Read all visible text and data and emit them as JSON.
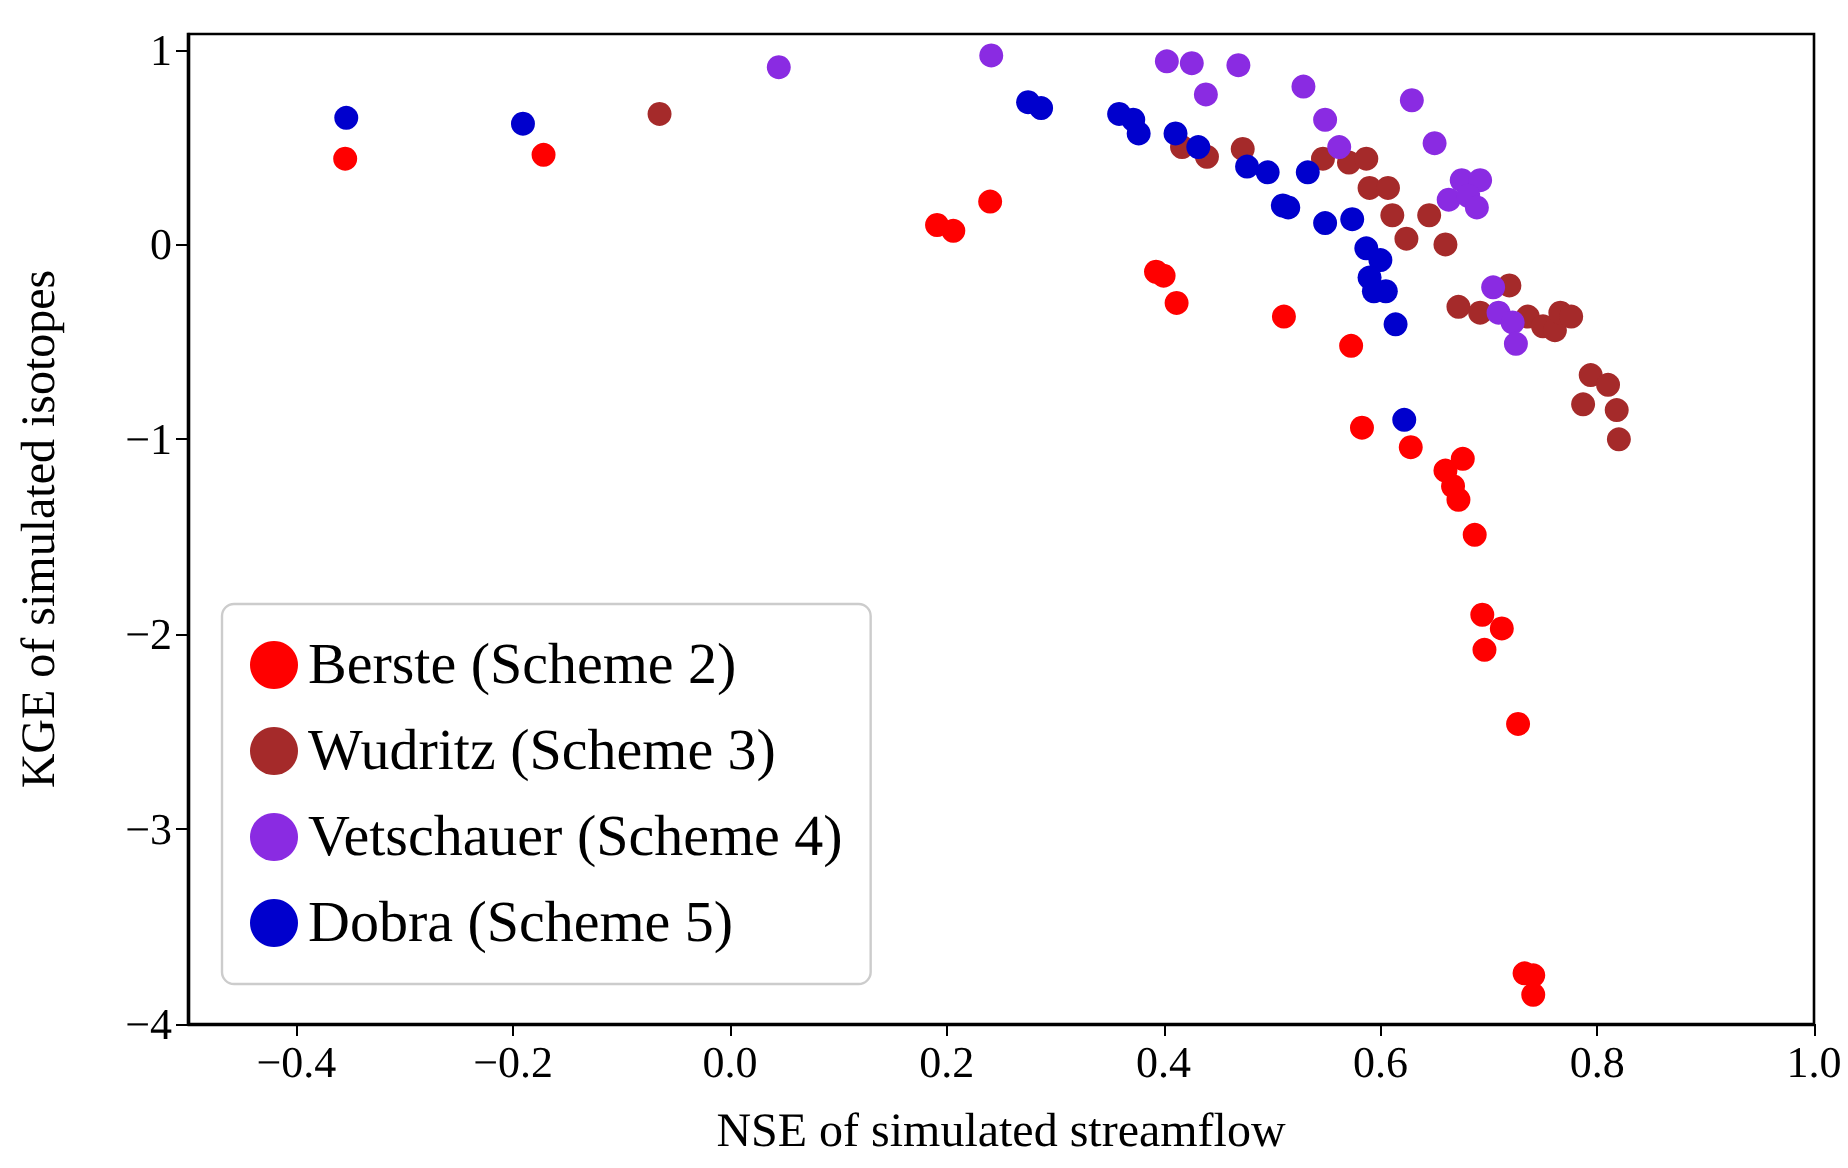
{
  "chart_data": {
    "type": "scatter",
    "xlabel": "NSE of simulated streamflow",
    "ylabel": "KGE of simulated isotopes",
    "xlim": [
      -0.5,
      1.0
    ],
    "ylim": [
      -4.0,
      1.08
    ],
    "xticks": [
      {
        "value": -0.4,
        "label": "−0.4"
      },
      {
        "value": -0.2,
        "label": "−0.2"
      },
      {
        "value": 0,
        "label": "0.0"
      },
      {
        "value": 0.2,
        "label": "0.2"
      },
      {
        "value": 0.4,
        "label": "0.4"
      },
      {
        "value": 0.6,
        "label": "0.6"
      },
      {
        "value": 0.8,
        "label": "0.8"
      },
      {
        "value": 1.0,
        "label": "1.0"
      }
    ],
    "yticks": [
      {
        "value": -4,
        "label": "−4"
      },
      {
        "value": -3,
        "label": "−3"
      },
      {
        "value": -2,
        "label": "−2"
      },
      {
        "value": -1,
        "label": "−1"
      },
      0,
      1
    ],
    "legend": "bottom left",
    "marker": "circle",
    "series": [
      {
        "name": "Berste (Scheme 2)",
        "color": "#ff0000",
        "x": [
          -0.355,
          -0.172,
          0.191,
          0.206,
          0.24,
          0.393,
          0.4,
          0.412,
          0.511,
          0.573,
          0.583,
          0.628,
          0.676,
          0.66,
          0.667,
          0.672,
          0.687,
          0.694,
          0.712,
          0.696,
          0.727,
          0.733,
          0.741,
          0.741
        ],
        "values": [
          0.44,
          0.46,
          0.1,
          0.07,
          0.22,
          -0.14,
          -0.16,
          -0.3,
          -0.37,
          -0.52,
          -0.94,
          -1.04,
          -1.1,
          -1.16,
          -1.24,
          -1.31,
          -1.49,
          -1.9,
          -1.97,
          -2.08,
          -2.46,
          -3.74,
          -3.75,
          -3.85
        ]
      },
      {
        "name": "Wudritz (Scheme 3)",
        "color": "#a52a2a",
        "x": [
          -0.065,
          0.417,
          0.44,
          0.473,
          0.547,
          0.571,
          0.587,
          0.59,
          0.607,
          0.611,
          0.645,
          0.624,
          0.66,
          0.719,
          0.672,
          0.692,
          0.736,
          0.75,
          0.761,
          0.766,
          0.776,
          0.794,
          0.81,
          0.787,
          0.818,
          0.82
        ],
        "values": [
          0.67,
          0.5,
          0.45,
          0.49,
          0.44,
          0.42,
          0.44,
          0.29,
          0.29,
          0.15,
          0.15,
          0.03,
          0.0,
          -0.21,
          -0.32,
          -0.35,
          -0.37,
          -0.42,
          -0.44,
          -0.35,
          -0.37,
          -0.67,
          -0.72,
          -0.82,
          -0.85,
          -1.0
        ]
      },
      {
        "name": "Vetschauer (Scheme 4)",
        "color": "#8a2be2",
        "x": [
          0.045,
          0.241,
          0.403,
          0.426,
          0.469,
          0.439,
          0.529,
          0.549,
          0.629,
          0.65,
          0.562,
          0.675,
          0.692,
          0.663,
          0.681,
          0.689,
          0.704,
          0.709,
          0.722,
          0.725
        ],
        "values": [
          0.91,
          0.97,
          0.94,
          0.93,
          0.92,
          0.77,
          0.81,
          0.64,
          0.74,
          0.52,
          0.5,
          0.33,
          0.33,
          0.23,
          0.25,
          0.19,
          -0.22,
          -0.35,
          -0.4,
          -0.51
        ]
      },
      {
        "name": "Dobra (Scheme 5)",
        "color": "#0000cd",
        "x": [
          -0.354,
          -0.191,
          0.275,
          0.287,
          0.359,
          0.372,
          0.377,
          0.411,
          0.432,
          0.477,
          0.496,
          0.533,
          0.51,
          0.515,
          0.549,
          0.574,
          0.587,
          0.6,
          0.59,
          0.594,
          0.605,
          0.614,
          0.622
        ],
        "values": [
          0.65,
          0.62,
          0.73,
          0.7,
          0.67,
          0.64,
          0.57,
          0.57,
          0.5,
          0.4,
          0.37,
          0.37,
          0.2,
          0.19,
          0.11,
          0.13,
          -0.02,
          -0.08,
          -0.17,
          -0.24,
          -0.24,
          -0.41,
          -0.9
        ]
      }
    ]
  }
}
